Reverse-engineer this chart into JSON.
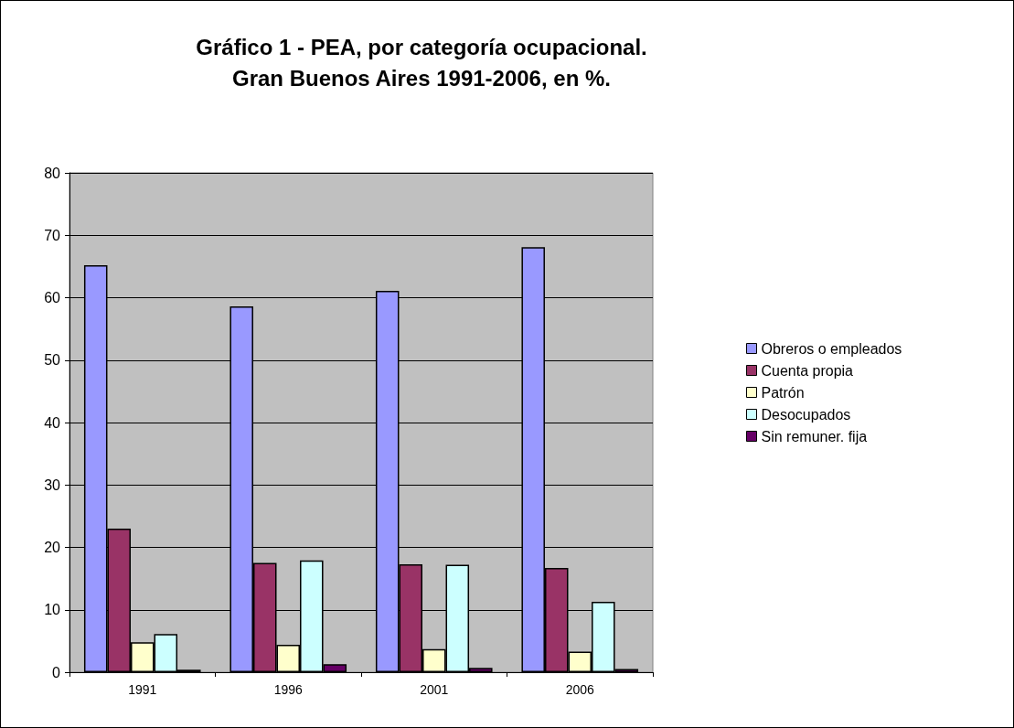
{
  "chart_data": {
    "type": "bar",
    "title": "Gráfico 1 - PEA, por categoría ocupacional.\nGran Buenos Aires 1991-2006, en %.",
    "categories": [
      "1991",
      "1996",
      "2001",
      "2006"
    ],
    "series": [
      {
        "name": "Obreros o empleados",
        "color": "#9999ff",
        "values": [
          65.2,
          58.6,
          61.1,
          68.1
        ]
      },
      {
        "name": "Cuenta propia",
        "color": "#993366",
        "values": [
          23.0,
          17.5,
          17.3,
          16.7
        ]
      },
      {
        "name": "Patrón",
        "color": "#ffffcc",
        "values": [
          4.8,
          4.4,
          3.7,
          3.3
        ]
      },
      {
        "name": "Desocupados",
        "color": "#ccffff",
        "values": [
          6.1,
          17.9,
          17.2,
          11.3
        ]
      },
      {
        "name": "Sin remuner. fija",
        "color": "#660066",
        "values": [
          0.4,
          1.3,
          0.7,
          0.5
        ]
      }
    ],
    "ylim": [
      0,
      80
    ],
    "yticks": [
      0,
      10,
      20,
      30,
      40,
      50,
      60,
      70,
      80
    ],
    "grid": "y",
    "legend": "right"
  }
}
